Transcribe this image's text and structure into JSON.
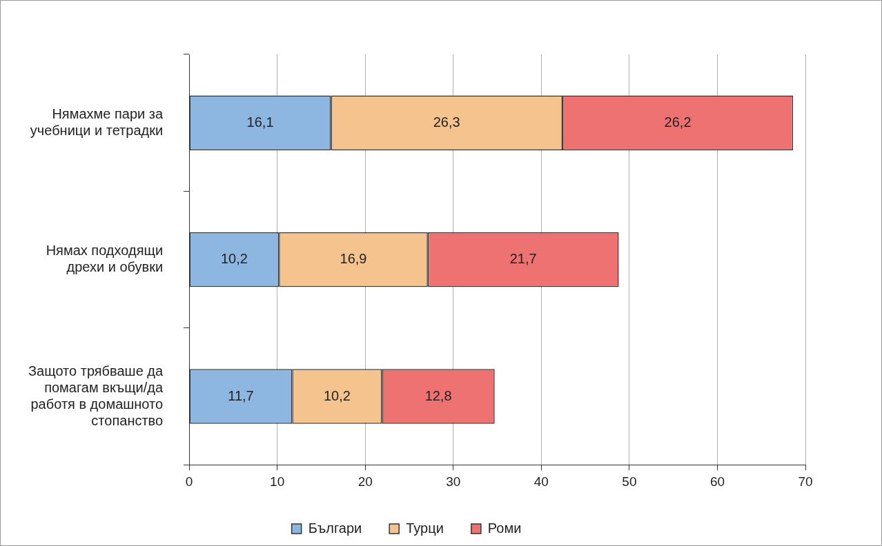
{
  "chart_data": {
    "type": "bar",
    "orientation": "horizontal",
    "stacked": true,
    "categories": [
      "Нямахме пари за учебници и тетрадки",
      "Нямах подходящи дрехи и обувки",
      "Защото трябваше да помагам вкъщи/да работя в домашното стопанство"
    ],
    "series": [
      {
        "name": "Българи",
        "color": "#8db6e0",
        "values": [
          16.1,
          10.2,
          11.7
        ],
        "value_labels": [
          "16,1",
          "10,2",
          "11,7"
        ]
      },
      {
        "name": "Турци",
        "color": "#f5c48e",
        "values": [
          26.3,
          16.9,
          10.2
        ],
        "value_labels": [
          "26,3",
          "16,9",
          "10,2"
        ]
      },
      {
        "name": "Роми",
        "color": "#ee7272",
        "values": [
          26.2,
          21.7,
          12.8
        ],
        "value_labels": [
          "26,2",
          "21,7",
          "12,8"
        ]
      }
    ],
    "xlim": [
      0,
      70
    ],
    "xticks": [
      0,
      10,
      20,
      30,
      40,
      50,
      60,
      70
    ],
    "grid": "x",
    "legend": "bottom"
  }
}
